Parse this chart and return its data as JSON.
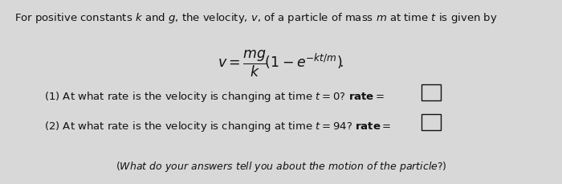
{
  "bg_color": "#d8d8d8",
  "text_color": "#111111",
  "fig_width": 7.0,
  "fig_height": 2.29,
  "dpi": 100,
  "fontsize_main": 9.5,
  "fontsize_eq": 12.5
}
